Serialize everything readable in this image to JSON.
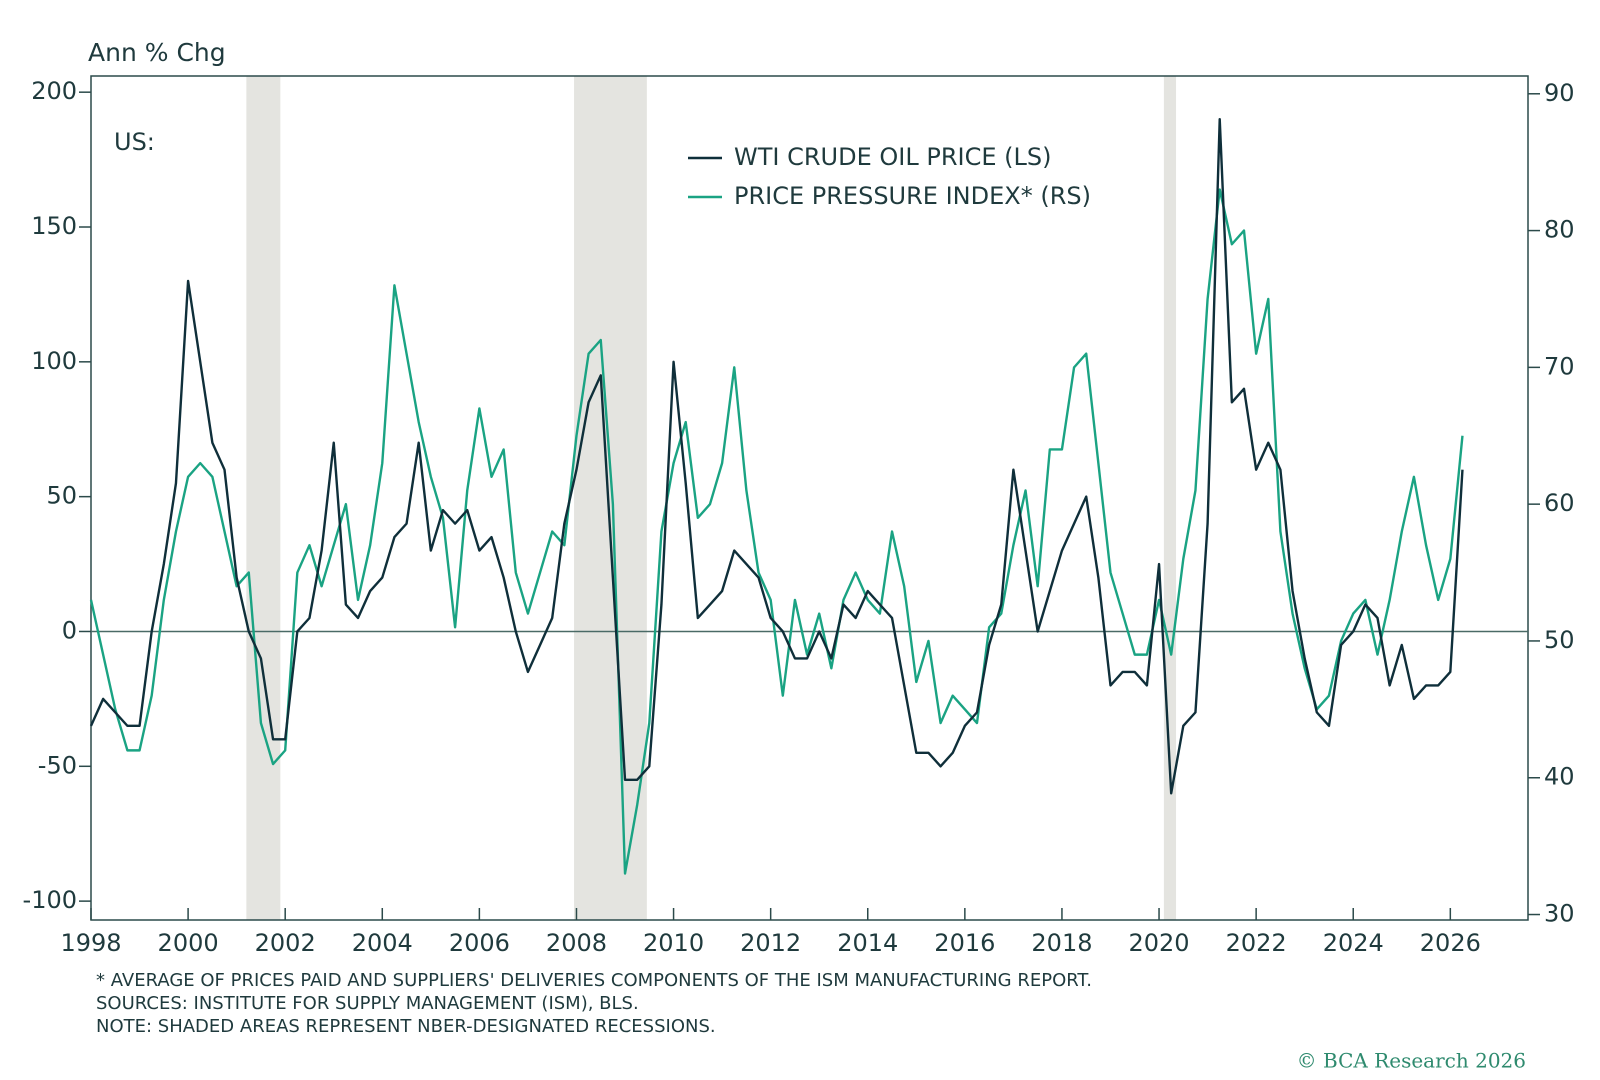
{
  "chart_data": {
    "type": "line",
    "y_label": "Ann % Chg",
    "annotation": "US:",
    "footnotes": [
      "* AVERAGE OF PRICES PAID AND SUPPLIERS' DELIVERIES COMPONENTS OF THE ISM MANUFACTURING REPORT.",
      "SOURCES: INSTITUTE FOR SUPPLY MANAGEMENT (ISM), BLS.",
      "NOTE: SHADED AREAS REPRESENT NBER-DESIGNATED RECESSIONS."
    ],
    "credit": "© BCA Research 2026",
    "xlim": [
      1998,
      2027.6
    ],
    "xticks": [
      1998,
      2000,
      2002,
      2004,
      2006,
      2008,
      2010,
      2012,
      2014,
      2016,
      2018,
      2020,
      2022,
      2024,
      2026
    ],
    "ylim": [
      -107,
      206
    ],
    "yticks": [
      -100,
      -50,
      0,
      50,
      100,
      150,
      200
    ],
    "y2lim": [
      29.6,
      91.3
    ],
    "y2ticks": [
      30,
      40,
      50,
      60,
      70,
      80,
      90
    ],
    "reference_line": 0,
    "recessions": [
      [
        2001.2,
        2001.9
      ],
      [
        2007.95,
        2009.45
      ],
      [
        2020.1,
        2020.35
      ]
    ],
    "recession_color": "#e4e4e0",
    "x": [
      1998,
      1998.25,
      1998.5,
      1998.75,
      1999,
      1999.25,
      1999.5,
      1999.75,
      2000,
      2000.25,
      2000.5,
      2000.75,
      2001,
      2001.25,
      2001.5,
      2001.75,
      2002,
      2002.25,
      2002.5,
      2002.75,
      2003,
      2003.25,
      2003.5,
      2003.75,
      2004,
      2004.25,
      2004.5,
      2004.75,
      2005,
      2005.25,
      2005.5,
      2005.75,
      2006,
      2006.25,
      2006.5,
      2006.75,
      2007,
      2007.25,
      2007.5,
      2007.75,
      2008,
      2008.25,
      2008.5,
      2008.75,
      2009,
      2009.25,
      2009.5,
      2009.75,
      2010,
      2010.25,
      2010.5,
      2010.75,
      2011,
      2011.25,
      2011.5,
      2011.75,
      2012,
      2012.25,
      2012.5,
      2012.75,
      2013,
      2013.25,
      2013.5,
      2013.75,
      2014,
      2014.25,
      2014.5,
      2014.75,
      2015,
      2015.25,
      2015.5,
      2015.75,
      2016,
      2016.25,
      2016.5,
      2016.75,
      2017,
      2017.25,
      2017.5,
      2017.75,
      2018,
      2018.25,
      2018.5,
      2018.75,
      2019,
      2019.25,
      2019.5,
      2019.75,
      2020,
      2020.25,
      2020.5,
      2020.75,
      2021,
      2021.25,
      2021.5,
      2021.75,
      2022,
      2022.25,
      2022.5,
      2022.75,
      2023,
      2023.25,
      2023.5,
      2023.75,
      2024,
      2024.25,
      2024.5,
      2024.75,
      2025,
      2025.25,
      2025.5,
      2025.75,
      2026,
      2026.25
    ],
    "series": [
      {
        "name": "WTI CRUDE OIL PRICE (LS)",
        "color": "#0f2f3a",
        "axis": "y",
        "values": [
          -35,
          -25,
          -30,
          -35,
          -35,
          0,
          25,
          55,
          130,
          100,
          70,
          60,
          20,
          0,
          -10,
          -40,
          -40,
          0,
          5,
          30,
          70,
          10,
          5,
          15,
          20,
          35,
          40,
          70,
          30,
          45,
          40,
          45,
          30,
          35,
          20,
          0,
          -15,
          -5,
          5,
          40,
          60,
          85,
          95,
          20,
          -55,
          -55,
          -50,
          10,
          100,
          55,
          5,
          10,
          15,
          30,
          25,
          20,
          5,
          0,
          -10,
          -10,
          0,
          -10,
          10,
          5,
          15,
          10,
          5,
          -20,
          -45,
          -45,
          -50,
          -45,
          -35,
          -30,
          -5,
          10,
          60,
          30,
          0,
          15,
          30,
          40,
          50,
          20,
          -20,
          -15,
          -15,
          -20,
          25,
          -60,
          -35,
          -30,
          40,
          190,
          85,
          90,
          60,
          70,
          60,
          15,
          -10,
          -30,
          -35,
          -5,
          0,
          10,
          5,
          -20,
          -5,
          -25,
          -20,
          -20,
          -15,
          60
        ]
      },
      {
        "name": "PRICE PRESSURE INDEX* (RS)",
        "color": "#1aa383",
        "axis": "y2",
        "values": [
          53,
          49,
          45,
          42,
          42,
          46,
          53,
          58,
          62,
          63,
          62,
          58,
          54,
          55,
          44,
          41,
          42,
          55,
          57,
          54,
          57,
          60,
          53,
          57,
          63,
          76,
          71,
          66,
          62,
          59,
          51,
          61,
          67,
          62,
          64,
          55,
          52,
          55,
          58,
          57,
          65,
          71,
          72,
          60,
          33,
          38,
          44,
          58,
          63,
          66,
          59,
          60,
          63,
          70,
          61,
          55,
          53,
          46,
          53,
          49,
          52,
          48,
          53,
          55,
          53,
          52,
          58,
          54,
          47,
          50,
          44,
          46,
          45,
          44,
          51,
          52,
          57,
          61,
          54,
          64,
          64,
          70,
          71,
          63,
          55,
          52,
          49,
          49,
          53,
          49,
          56,
          61,
          75,
          83,
          79,
          80,
          71,
          75,
          58,
          52,
          48,
          45,
          46,
          50,
          52,
          53,
          49,
          53,
          58,
          62,
          57,
          53,
          56,
          65
        ]
      }
    ]
  }
}
